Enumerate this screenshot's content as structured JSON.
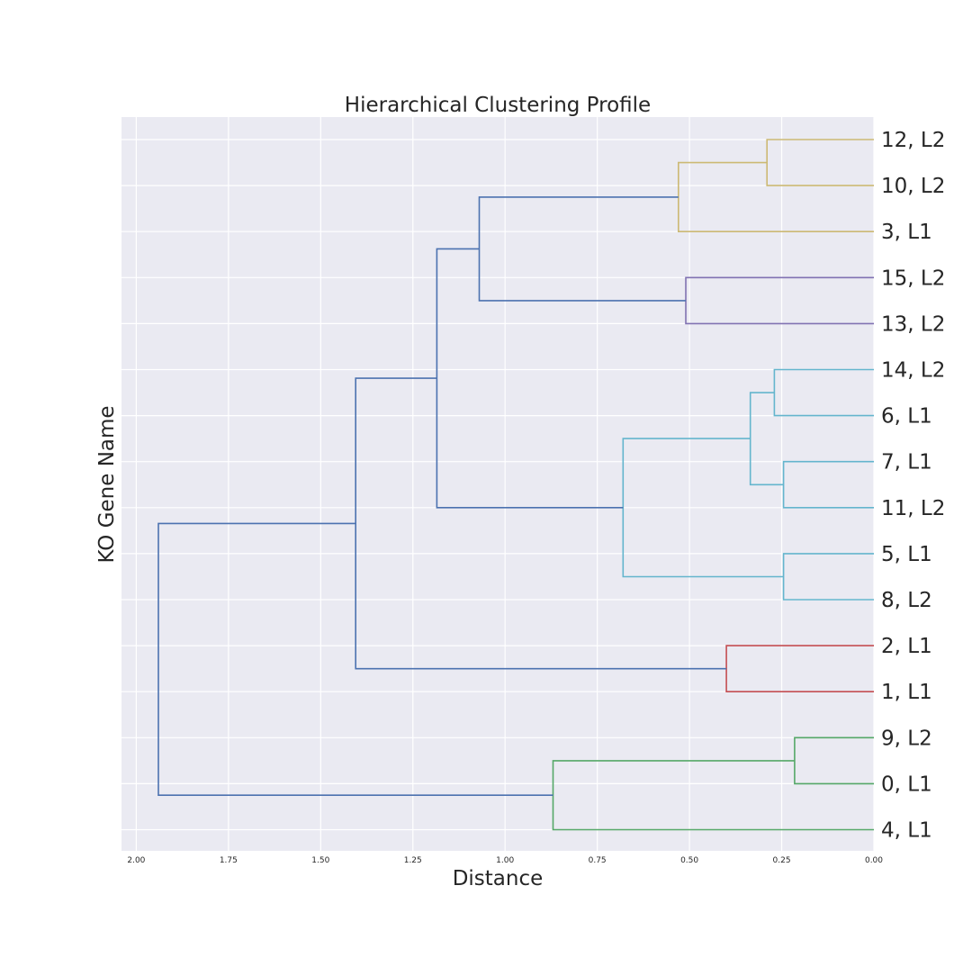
{
  "chart_data": {
    "type": "dendrogram",
    "title": "Hierarchical Clustering Profile",
    "xlabel": "Distance",
    "ylabel": "KO Gene Name",
    "xlim": [
      2.04,
      0.0
    ],
    "x_reversed": true,
    "grid": true,
    "x_ticks": [
      2.0,
      1.75,
      1.5,
      1.25,
      1.0,
      0.75,
      0.5,
      0.25,
      0.0
    ],
    "x_tick_labels": [
      "2.00",
      "1.75",
      "1.50",
      "1.25",
      "1.00",
      "0.75",
      "0.50",
      "0.25",
      "0.00"
    ],
    "leaves": [
      "12, L2",
      "10, L2",
      "3, L1",
      "15, L2",
      "13, L2",
      "14, L2",
      "6, L1",
      "7, L1",
      "11, L2",
      "5, L1",
      "8, L2",
      "2, L1",
      "1, L1",
      "9, L2",
      "0, L1",
      "4, L1"
    ],
    "merges": [
      {
        "id": "m1",
        "children": [
          "12, L2",
          "10, L2"
        ],
        "distance": 0.29,
        "color": "#ccb974"
      },
      {
        "id": "m2",
        "children": [
          "m1",
          "3, L1"
        ],
        "distance": 0.53,
        "color": "#ccb974"
      },
      {
        "id": "m3",
        "children": [
          "15, L2",
          "13, L2"
        ],
        "distance": 0.51,
        "color": "#8172b2"
      },
      {
        "id": "m4",
        "children": [
          "m2",
          "m3"
        ],
        "distance": 1.07,
        "color": "#4c72b0"
      },
      {
        "id": "m5",
        "children": [
          "14, L2",
          "6, L1"
        ],
        "distance": 0.27,
        "color": "#64b5cd"
      },
      {
        "id": "m6",
        "children": [
          "7, L1",
          "11, L2"
        ],
        "distance": 0.245,
        "color": "#64b5cd"
      },
      {
        "id": "m7",
        "children": [
          "m5",
          "m6"
        ],
        "distance": 0.335,
        "color": "#64b5cd"
      },
      {
        "id": "m8",
        "children": [
          "5, L1",
          "8, L2"
        ],
        "distance": 0.245,
        "color": "#64b5cd"
      },
      {
        "id": "m9",
        "children": [
          "m7",
          "m8"
        ],
        "distance": 0.68,
        "color": "#64b5cd"
      },
      {
        "id": "m10",
        "children": [
          "m4",
          "m9"
        ],
        "distance": 1.185,
        "color": "#4c72b0"
      },
      {
        "id": "m11",
        "children": [
          "2, L1",
          "1, L1"
        ],
        "distance": 0.4,
        "color": "#c44e52"
      },
      {
        "id": "m12",
        "children": [
          "m10",
          "m11"
        ],
        "distance": 1.405,
        "color": "#4c72b0"
      },
      {
        "id": "m13",
        "children": [
          "9, L2",
          "0, L1"
        ],
        "distance": 0.215,
        "color": "#55a868"
      },
      {
        "id": "m14",
        "children": [
          "m13",
          "4, L1"
        ],
        "distance": 0.87,
        "color": "#55a868"
      },
      {
        "id": "m15",
        "children": [
          "m12",
          "m14"
        ],
        "distance": 1.94,
        "color": "#4c72b0"
      }
    ]
  }
}
